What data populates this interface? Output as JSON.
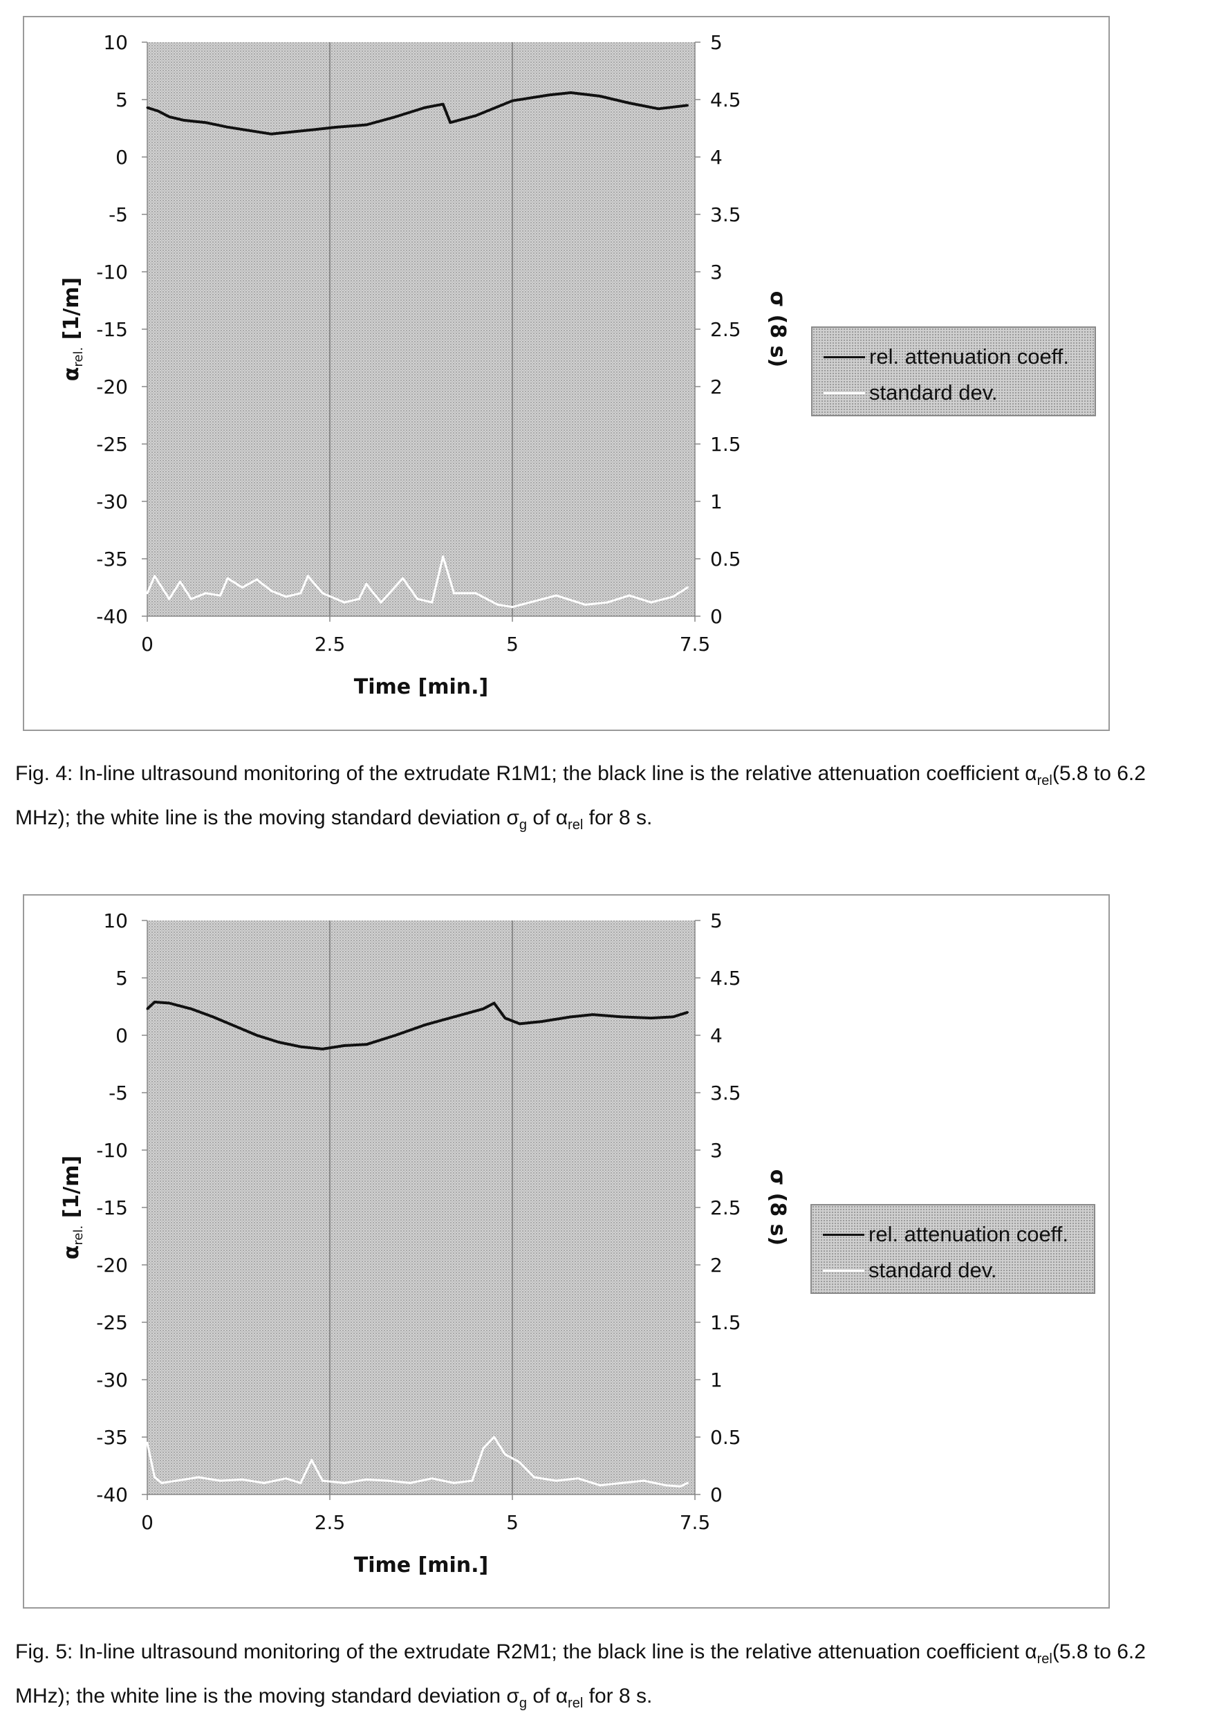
{
  "chart_data": [
    {
      "type": "line",
      "x_ticks": [
        "0",
        "2.5",
        "5",
        "7.5"
      ],
      "xlim": [
        0,
        7.5
      ],
      "xlabel": "Time [min.]",
      "ylabel_left": "α rel. [1/m]",
      "ylabel_left_main": "α",
      "ylabel_left_sub": "rel.",
      "ylabel_left_unit": "[1/m]",
      "ylim_left": [
        -40,
        10
      ],
      "y_ticks_left": [
        "10",
        "5",
        "0",
        "-5",
        "-10",
        "-15",
        "-20",
        "-25",
        "-30",
        "-35",
        "-40"
      ],
      "ylabel_right": "σ (8 s)",
      "ylim_right": [
        0,
        5
      ],
      "y_ticks_right": [
        "5",
        "4.5",
        "4",
        "3.5",
        "3",
        "2.5",
        "2",
        "1.5",
        "1",
        "0.5",
        "0"
      ],
      "grid": "vertical at x ticks",
      "legend_position": "right",
      "series": [
        {
          "name": "rel. attenuation coeff.",
          "axis": "left",
          "color": "#111111",
          "x": [
            0,
            0.15,
            0.3,
            0.5,
            0.8,
            1.1,
            1.4,
            1.7,
            2.0,
            2.3,
            2.6,
            3.0,
            3.4,
            3.8,
            4.05,
            4.15,
            4.5,
            5.0,
            5.5,
            5.8,
            6.2,
            6.6,
            7.0,
            7.4
          ],
          "y": [
            4.3,
            4.0,
            3.5,
            3.2,
            3.0,
            2.6,
            2.3,
            2.0,
            2.2,
            2.4,
            2.6,
            2.8,
            3.5,
            4.3,
            4.6,
            3.0,
            3.6,
            4.9,
            5.4,
            5.6,
            5.3,
            4.7,
            4.2,
            4.5
          ]
        },
        {
          "name": "standard dev.",
          "axis": "right",
          "color": "#ffffff",
          "x": [
            0,
            0.1,
            0.2,
            0.3,
            0.45,
            0.6,
            0.8,
            1.0,
            1.1,
            1.3,
            1.5,
            1.7,
            1.9,
            2.1,
            2.2,
            2.4,
            2.7,
            2.9,
            3.0,
            3.2,
            3.5,
            3.7,
            3.9,
            4.05,
            4.2,
            4.5,
            4.8,
            5.0,
            5.3,
            5.6,
            6.0,
            6.3,
            6.6,
            6.9,
            7.2,
            7.4
          ],
          "y": [
            0.2,
            0.35,
            0.25,
            0.15,
            0.3,
            0.15,
            0.2,
            0.18,
            0.33,
            0.25,
            0.32,
            0.22,
            0.17,
            0.2,
            0.35,
            0.2,
            0.12,
            0.15,
            0.28,
            0.12,
            0.33,
            0.15,
            0.12,
            0.52,
            0.2,
            0.2,
            0.1,
            0.08,
            0.13,
            0.18,
            0.1,
            0.12,
            0.18,
            0.12,
            0.17,
            0.25
          ]
        }
      ]
    },
    {
      "type": "line",
      "x_ticks": [
        "0",
        "2.5",
        "5",
        "7.5"
      ],
      "xlim": [
        0,
        7.5
      ],
      "xlabel": "Time [min.]",
      "ylabel_left": "α rel. [1/m]",
      "ylabel_left_main": "α",
      "ylabel_left_sub": "rel.",
      "ylabel_left_unit": "[1/m]",
      "ylim_left": [
        -40,
        10
      ],
      "y_ticks_left": [
        "10",
        "5",
        "0",
        "-5",
        "-10",
        "-15",
        "-20",
        "-25",
        "-30",
        "-35",
        "-40"
      ],
      "ylabel_right": "σ (8 s)",
      "ylim_right": [
        0,
        5
      ],
      "y_ticks_right": [
        "5",
        "4.5",
        "4",
        "3.5",
        "3",
        "2.5",
        "2",
        "1.5",
        "1",
        "0.5",
        "0"
      ],
      "grid": "vertical at x ticks",
      "legend_position": "right",
      "series": [
        {
          "name": "rel. attenuation coeff.",
          "axis": "left",
          "color": "#111111",
          "x": [
            0,
            0.1,
            0.3,
            0.6,
            0.9,
            1.2,
            1.5,
            1.8,
            2.1,
            2.4,
            2.7,
            3.0,
            3.4,
            3.8,
            4.2,
            4.6,
            4.75,
            4.9,
            5.1,
            5.4,
            5.8,
            6.1,
            6.5,
            6.9,
            7.2,
            7.4
          ],
          "y": [
            2.3,
            2.9,
            2.8,
            2.3,
            1.6,
            0.8,
            0.0,
            -0.6,
            -1.0,
            -1.2,
            -0.9,
            -0.8,
            0.0,
            0.9,
            1.6,
            2.3,
            2.8,
            1.5,
            1.0,
            1.2,
            1.6,
            1.8,
            1.6,
            1.5,
            1.6,
            2.0
          ]
        },
        {
          "name": "standard dev.",
          "axis": "right",
          "color": "#ffffff",
          "x": [
            0,
            0.1,
            0.2,
            0.4,
            0.7,
            1.0,
            1.3,
            1.6,
            1.9,
            2.1,
            2.25,
            2.4,
            2.7,
            3.0,
            3.3,
            3.6,
            3.9,
            4.2,
            4.45,
            4.6,
            4.75,
            4.9,
            5.1,
            5.3,
            5.6,
            5.9,
            6.2,
            6.5,
            6.8,
            7.1,
            7.3,
            7.4
          ],
          "y": [
            0.45,
            0.15,
            0.1,
            0.12,
            0.15,
            0.12,
            0.13,
            0.1,
            0.14,
            0.1,
            0.3,
            0.12,
            0.1,
            0.13,
            0.12,
            0.1,
            0.14,
            0.1,
            0.12,
            0.4,
            0.5,
            0.35,
            0.28,
            0.15,
            0.12,
            0.14,
            0.08,
            0.1,
            0.12,
            0.08,
            0.07,
            0.1
          ]
        }
      ]
    }
  ],
  "captions": [
    {
      "prefix": "Fig. 4: In-line ultrasound monitoring of the extrudate R1M1; the black line is the relative attenuation coefficient α",
      "sub1": "rel",
      "middle": "(5.8 to 6.2 MHz); the white line is the moving standard deviation σ",
      "sub2": "g",
      "middle2": " of α",
      "sub3": "rel",
      "suffix": " for 8 s."
    },
    {
      "prefix": "Fig. 5: In-line ultrasound monitoring of the extrudate R2M1; the black line is the relative attenuation coefficient α",
      "sub1": "rel",
      "middle": "(5.8 to 6.2 MHz); the white line is the moving standard deviation σ",
      "sub2": "g",
      "middle2": " of α",
      "sub3": "rel",
      "suffix": " for 8 s."
    }
  ]
}
